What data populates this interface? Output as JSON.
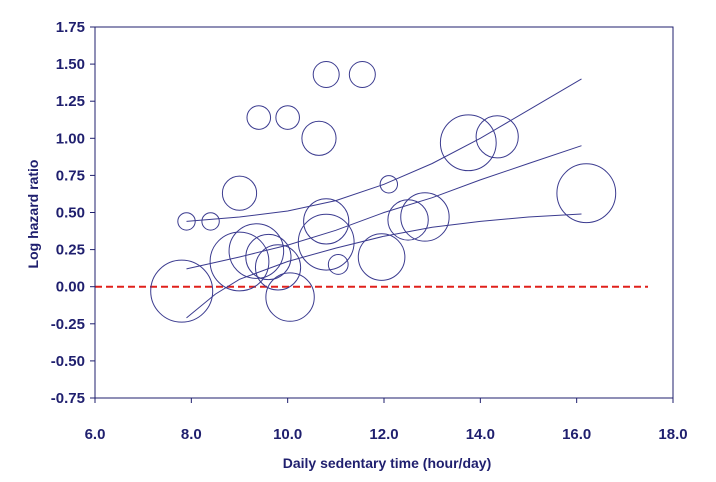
{
  "chart_data": {
    "type": "scatter",
    "xlabel": "Daily sedentary time (hour/day)",
    "ylabel": "Log hazard ratio",
    "xlim": [
      6.0,
      18.0
    ],
    "ylim": [
      -0.75,
      1.75
    ],
    "x_ticks": [
      "6.0",
      "8.0",
      "10.0",
      "12.0",
      "14.0",
      "16.0",
      "18.0"
    ],
    "y_ticks": [
      "1.75",
      "1.50",
      "1.25",
      "1.00",
      "0.75",
      "0.50",
      "0.25",
      "0.00",
      "-0.25",
      "-0.50",
      "-0.75"
    ],
    "grid": false,
    "legend": "none",
    "colors": {
      "axis": "#1f1f6e",
      "bubble": "#3b3b8f",
      "line": "#3b3b8f",
      "reference": "#e0201b",
      "text": "#1f1f6e"
    },
    "series": [
      {
        "values_note_keys": [
          "x",
          "y",
          "size"
        ],
        "points": [
          {
            "x": 7.8,
            "y": -0.03,
            "size": 1.0
          },
          {
            "x": 7.9,
            "y": 0.44,
            "size": 0.28
          },
          {
            "x": 8.4,
            "y": 0.44,
            "size": 0.28
          },
          {
            "x": 9.0,
            "y": 0.63,
            "size": 0.55
          },
          {
            "x": 9.0,
            "y": 0.17,
            "size": 0.95
          },
          {
            "x": 9.35,
            "y": 0.24,
            "size": 0.88
          },
          {
            "x": 9.4,
            "y": 1.14,
            "size": 0.38
          },
          {
            "x": 9.6,
            "y": 0.2,
            "size": 0.73
          },
          {
            "x": 9.8,
            "y": 0.13,
            "size": 0.73
          },
          {
            "x": 10.0,
            "y": 1.14,
            "size": 0.38
          },
          {
            "x": 10.05,
            "y": -0.07,
            "size": 0.78
          },
          {
            "x": 10.65,
            "y": 1.0,
            "size": 0.55
          },
          {
            "x": 10.8,
            "y": 0.44,
            "size": 0.73
          },
          {
            "x": 10.8,
            "y": 0.3,
            "size": 0.9
          },
          {
            "x": 10.8,
            "y": 1.43,
            "size": 0.42
          },
          {
            "x": 11.05,
            "y": 0.15,
            "size": 0.32
          },
          {
            "x": 11.55,
            "y": 1.43,
            "size": 0.42
          },
          {
            "x": 11.95,
            "y": 0.2,
            "size": 0.75
          },
          {
            "x": 12.1,
            "y": 0.69,
            "size": 0.28
          },
          {
            "x": 12.5,
            "y": 0.45,
            "size": 0.65
          },
          {
            "x": 12.85,
            "y": 0.47,
            "size": 0.78
          },
          {
            "x": 13.75,
            "y": 0.97,
            "size": 0.9
          },
          {
            "x": 14.35,
            "y": 1.01,
            "size": 0.68
          },
          {
            "x": 16.2,
            "y": 0.63,
            "size": 0.95
          }
        ]
      }
    ],
    "fit_lines": [
      {
        "name": "",
        "x": [
          7.9,
          9.0,
          10.0,
          11.0,
          12.0,
          13.0,
          14.0,
          15.0,
          16.1
        ],
        "y": [
          0.44,
          0.47,
          0.51,
          0.58,
          0.69,
          0.83,
          1.0,
          1.19,
          1.4
        ]
      },
      {
        "name": "",
        "x": [
          7.9,
          9.0,
          10.0,
          11.0,
          12.0,
          13.0,
          14.0,
          15.0,
          16.1
        ],
        "y": [
          0.12,
          0.2,
          0.28,
          0.38,
          0.5,
          0.6,
          0.72,
          0.83,
          0.95
        ]
      },
      {
        "name": "",
        "x": [
          7.9,
          8.5,
          9.0,
          10.0,
          11.0,
          12.0,
          13.0,
          14.0,
          15.0,
          16.1
        ],
        "y": [
          -0.21,
          -0.05,
          0.05,
          0.17,
          0.26,
          0.34,
          0.4,
          0.44,
          0.47,
          0.49
        ]
      }
    ],
    "reference_line": {
      "y": 0.0,
      "style": "dashed"
    }
  }
}
